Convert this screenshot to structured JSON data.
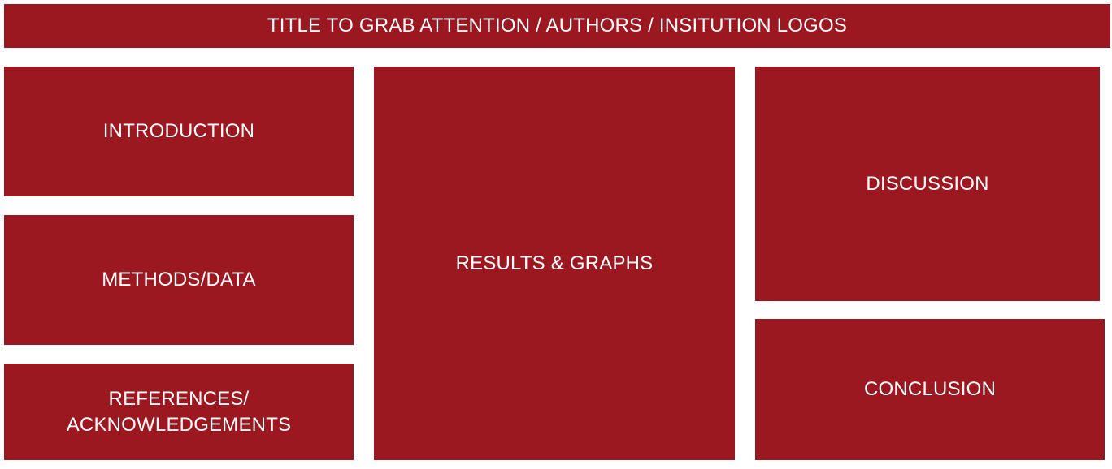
{
  "title": "TITLE TO GRAB ATTENTION / AUTHORS / INSITUTION LOGOS",
  "sections": {
    "introduction": "INTRODUCTION",
    "methods": "METHODS/DATA",
    "references": "REFERENCES/\nACKNOWLEDGEMENTS",
    "results": "RESULTS & GRAPHS",
    "discussion": "DISCUSSION",
    "conclusion": "CONCLUSION"
  },
  "colors": {
    "panel": "#9c1820",
    "text": "#ffffff",
    "background": "#ffffff"
  }
}
